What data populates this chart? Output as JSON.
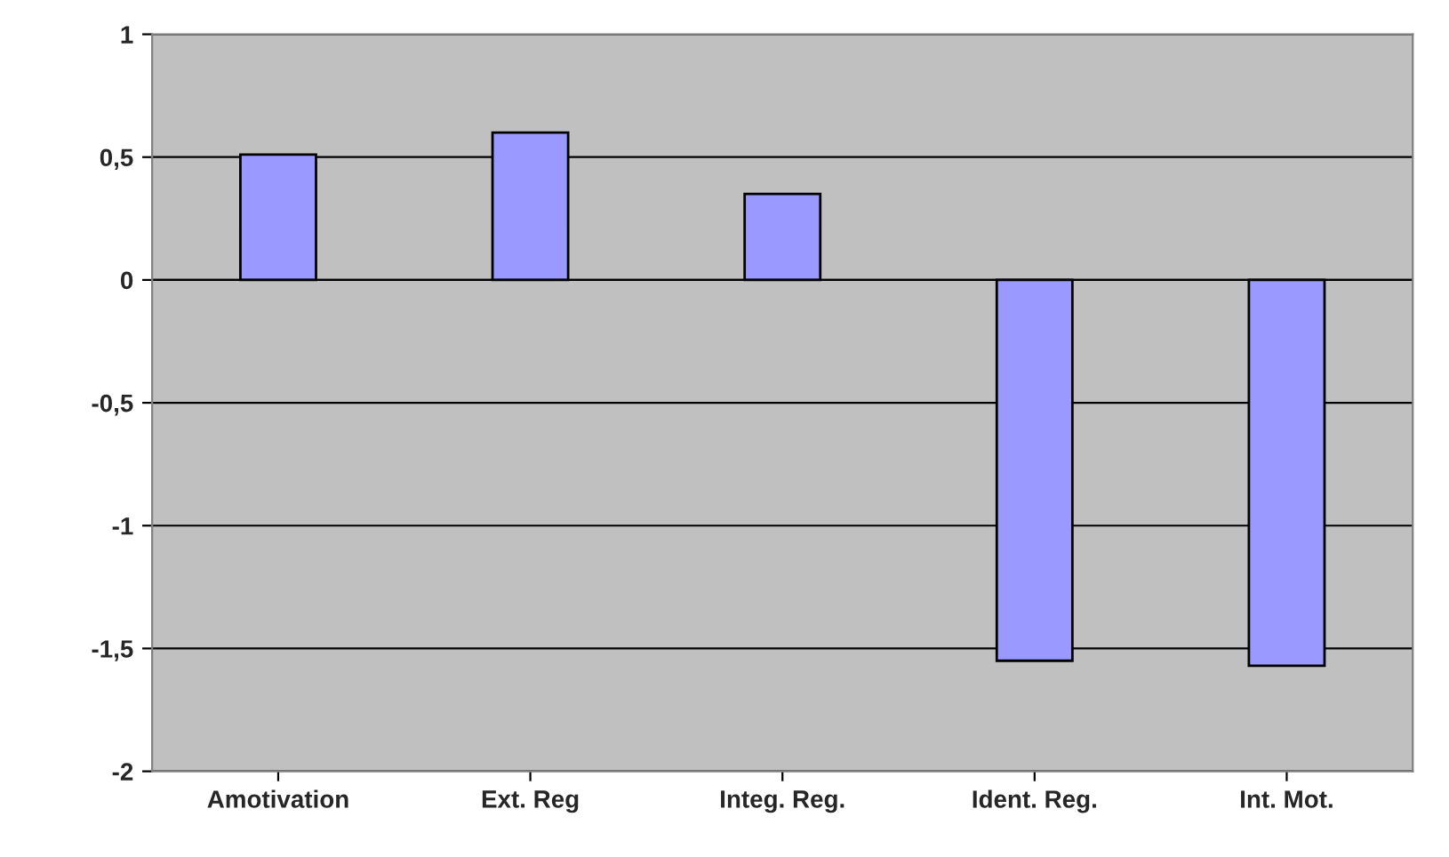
{
  "chart_data": {
    "type": "bar",
    "categories": [
      "Amotivation",
      "Ext. Reg",
      "Integ. Reg.",
      "Ident. Reg.",
      "Int. Mot."
    ],
    "series": [
      {
        "color": "#9999ff",
        "values": [
          0.51,
          0.6,
          0.35,
          -1.55,
          -1.57
        ]
      }
    ],
    "ylim": [
      -2,
      1
    ],
    "yticks": [
      {
        "value": -2,
        "label": "-2"
      },
      {
        "value": -1.5,
        "label": "-1,5"
      },
      {
        "value": -1,
        "label": "-1"
      },
      {
        "value": -0.5,
        "label": "-0,5"
      },
      {
        "value": 0,
        "label": "0"
      },
      {
        "value": 0.5,
        "label": "0,5"
      },
      {
        "value": 1,
        "label": "1"
      }
    ],
    "grid": "y",
    "legend": false
  }
}
